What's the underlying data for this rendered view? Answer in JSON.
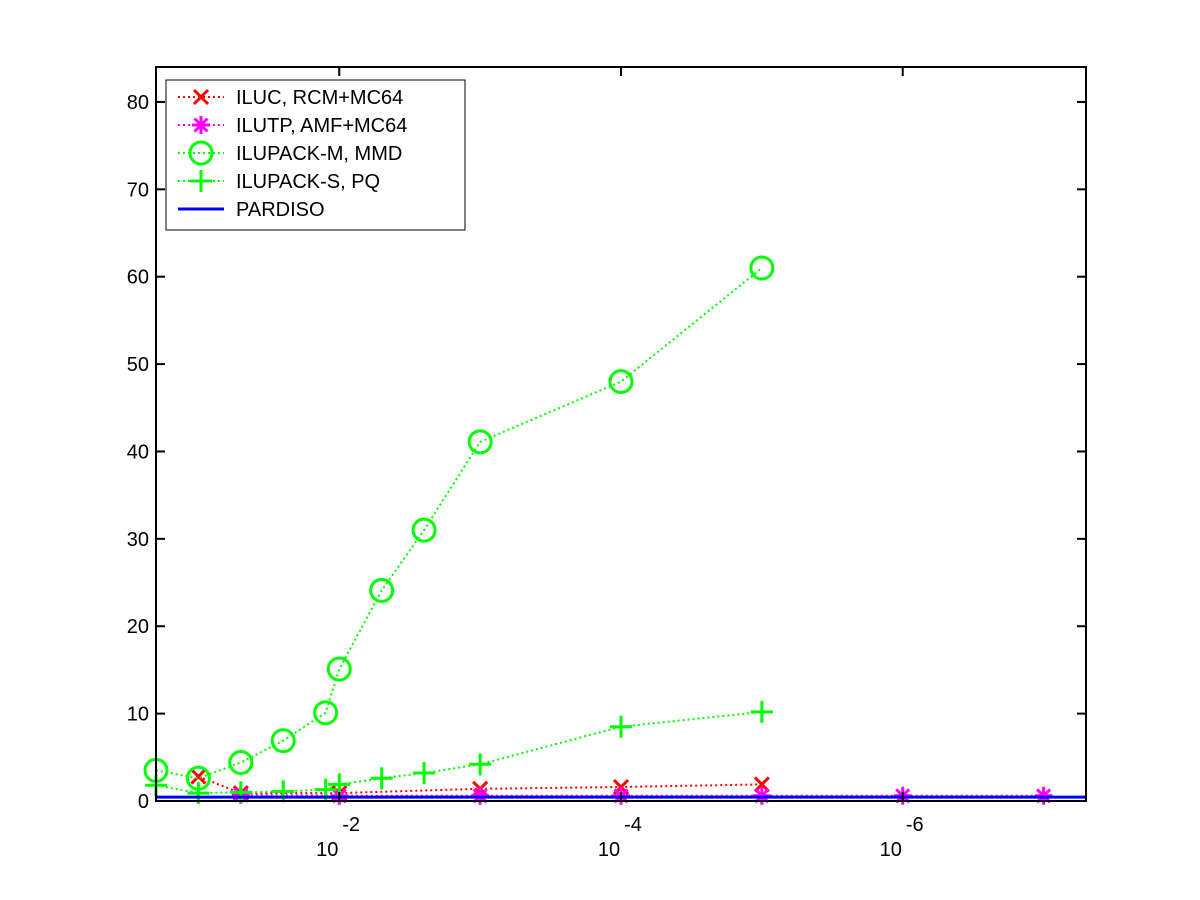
{
  "chart_data": {
    "type": "line",
    "x_scale": "log10-reversed",
    "xlim": [
      0.2,
      5e-08
    ],
    "ylim": [
      0,
      84
    ],
    "x_ticks": [
      0.01,
      0.0001,
      1e-06
    ],
    "x_tick_labels": [
      {
        "base": "10",
        "exp": "-2"
      },
      {
        "base": "10",
        "exp": "-4"
      },
      {
        "base": "10",
        "exp": "-6"
      }
    ],
    "y_ticks": [
      0,
      10,
      20,
      30,
      40,
      50,
      60,
      70,
      80
    ],
    "y_tick_labels": [
      "0",
      "10",
      "20",
      "30",
      "40",
      "50",
      "60",
      "70",
      "80"
    ],
    "grid": false,
    "legend": {
      "placement": "top-left"
    },
    "series": [
      {
        "name": "ILUC, RCM+MC64",
        "color": "#ff0000",
        "marker": "x",
        "line": "dotted",
        "x": [
          0.1,
          0.05,
          0.01,
          0.001,
          0.0001,
          1e-05
        ],
        "y": [
          2.8,
          0.9,
          0.9,
          1.4,
          1.6,
          1.9
        ]
      },
      {
        "name": "ILUTP, AMF+MC64",
        "color": "#ff00ff",
        "marker": "asterisk",
        "line": "dotted",
        "x": [
          0.05,
          0.01,
          0.001,
          0.0001,
          1e-05,
          1e-06,
          1e-07
        ],
        "y": [
          0.7,
          0.6,
          0.6,
          0.6,
          0.6,
          0.6,
          0.6
        ]
      },
      {
        "name": "ILUPACK-M, MMD",
        "color": "#00ff00",
        "marker": "circle",
        "line": "dotted",
        "x": [
          0.2,
          0.1,
          0.05,
          0.025,
          0.0125,
          0.01,
          0.005,
          0.0025,
          0.001,
          0.0001,
          1e-05
        ],
        "y": [
          3.5,
          2.6,
          4.4,
          6.9,
          10.1,
          15.1,
          24.1,
          31.0,
          41.1,
          48.0,
          61.0
        ]
      },
      {
        "name": "ILUPACK-S, PQ",
        "color": "#00ff00",
        "marker": "plus",
        "line": "dotted",
        "x": [
          0.2,
          0.1,
          0.05,
          0.025,
          0.0125,
          0.01,
          0.005,
          0.0025,
          0.001,
          0.0001,
          1e-05
        ],
        "y": [
          1.8,
          0.9,
          1.0,
          1.1,
          1.3,
          1.9,
          2.6,
          3.2,
          4.2,
          8.5,
          10.2
        ]
      },
      {
        "name": "PARDISO",
        "color": "#0000ff",
        "marker": "none",
        "line": "solid",
        "x": [
          0.2,
          5e-08
        ],
        "y": [
          0.45,
          0.45
        ]
      }
    ]
  }
}
